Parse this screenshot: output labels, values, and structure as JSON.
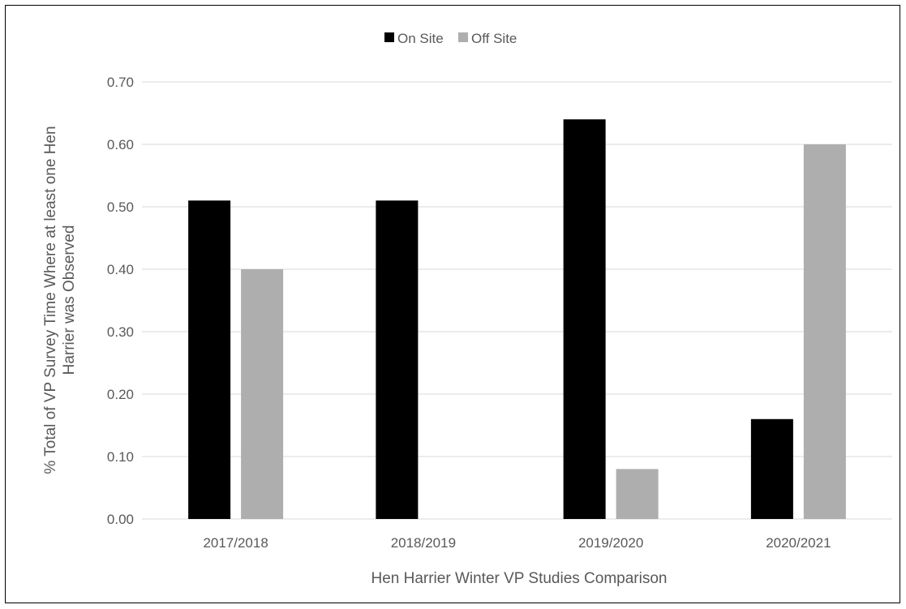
{
  "chart_data": {
    "type": "bar",
    "categories": [
      "2017/2018",
      "2018/2019",
      "2019/2020",
      "2020/2021"
    ],
    "series": [
      {
        "name": "On Site",
        "values": [
          0.51,
          0.51,
          0.64,
          0.16
        ],
        "color": "#000000"
      },
      {
        "name": "Off Site",
        "values": [
          0.4,
          0.0,
          0.08,
          0.6
        ],
        "color": "#aeaeae"
      }
    ],
    "title": "",
    "xlabel": "Hen Harrier Winter VP Studies Comparison",
    "ylabel_line1": "% Total of VP Survey Time Where at least one Hen",
    "ylabel_line2": "Harrier was Observed",
    "ylim": [
      0,
      0.7
    ],
    "yticks": [
      "0.00",
      "0.10",
      "0.20",
      "0.30",
      "0.40",
      "0.50",
      "0.60",
      "0.70"
    ],
    "grid": true,
    "legend_position": "top-center",
    "gridline_color": "#d9d9d9"
  }
}
